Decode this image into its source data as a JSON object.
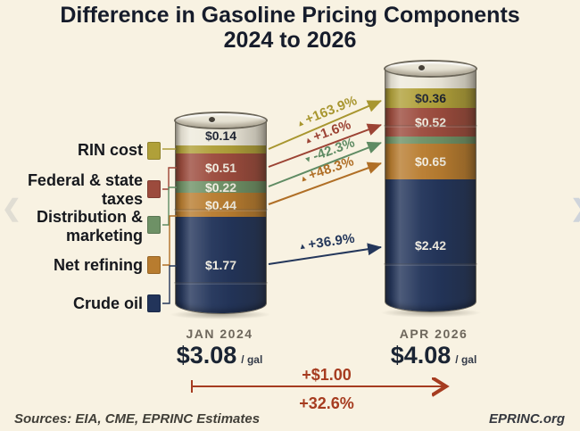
{
  "title": {
    "line1": "Difference in Gasoline Pricing Components",
    "line2": "2024 to 2026"
  },
  "carousel": {
    "prev_icon": "❮",
    "next_icon": "❯"
  },
  "chart_data": {
    "type": "bar",
    "subtype": "stacked-barrel-comparison",
    "unit": "$ per gallon",
    "unit_label": "/ gal",
    "categories": [
      "JAN 2024",
      "APR 2026"
    ],
    "segments": [
      {
        "name": "RIN cost",
        "color": "#b0a039",
        "color_accent": "#a8962f",
        "values": [
          0.14,
          0.36
        ],
        "change_pct": "+163.9%",
        "marker": "▲"
      },
      {
        "name": "Federal & state taxes",
        "color": "#9c4b3d",
        "color_accent": "#9c4334",
        "values": [
          0.51,
          0.52
        ],
        "change_pct": "+1.6%",
        "marker": "▲"
      },
      {
        "name": "Distribution & marketing",
        "color": "#6e9166",
        "color_accent": "#5f8b63",
        "values": [
          0.22,
          0.13
        ],
        "change_pct": "-42.3%",
        "marker": "▼"
      },
      {
        "name": "Net refining",
        "color": "#b87c2f",
        "color_accent": "#b06f26",
        "values": [
          0.44,
          0.65
        ],
        "change_pct": "+48.3%",
        "marker": "▲"
      },
      {
        "name": "Crude oil",
        "color": "#22345a",
        "color_accent": "#24375b",
        "values": [
          1.77,
          2.42
        ],
        "change_pct": "+36.9%",
        "marker": "▲"
      }
    ],
    "bar_labels": [
      [
        "$0.14",
        "$0.51",
        "$0.22",
        "$0.44",
        "$1.77"
      ],
      [
        "$0.36",
        "$0.52",
        "",
        "$0.65",
        "$2.42"
      ]
    ],
    "totals": [
      3.08,
      4.08
    ],
    "totals_display": [
      "$3.08",
      "$4.08"
    ],
    "total_change": {
      "amount": "+$1.00",
      "pct": "+32.6%",
      "color": "#a63c20"
    },
    "ylim": [
      0,
      4.08
    ],
    "legend_position": "left"
  },
  "footer": {
    "sources": "Sources: EIA, CME, EPRINC Estimates",
    "site": "EPRINC.org"
  }
}
